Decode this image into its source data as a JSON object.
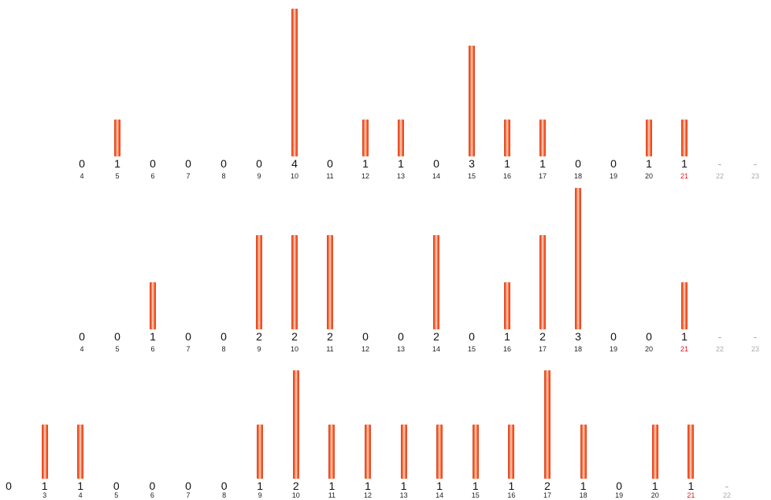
{
  "chart_data": [
    {
      "type": "bar",
      "categories": [
        "4",
        "5",
        "6",
        "7",
        "8",
        "9",
        "10",
        "11",
        "12",
        "13",
        "14",
        "15",
        "16",
        "17",
        "18",
        "19",
        "20",
        "21",
        "22",
        "23"
      ],
      "values": [
        0,
        1,
        0,
        0,
        0,
        0,
        4,
        0,
        1,
        1,
        0,
        3,
        1,
        1,
        0,
        0,
        1,
        1,
        null,
        null
      ],
      "value_labels": [
        "0",
        "1",
        "0",
        "0",
        "0",
        "0",
        "4",
        "0",
        "1",
        "1",
        "0",
        "3",
        "1",
        "1",
        "0",
        "0",
        "1",
        "1",
        "-",
        "-"
      ],
      "highlight_category": "21",
      "future_categories": [
        "22",
        "23"
      ]
    },
    {
      "type": "bar",
      "categories": [
        "4",
        "5",
        "6",
        "7",
        "8",
        "9",
        "10",
        "11",
        "12",
        "13",
        "14",
        "15",
        "16",
        "17",
        "18",
        "19",
        "20",
        "21",
        "22",
        "23"
      ],
      "values": [
        0,
        0,
        1,
        0,
        0,
        2,
        2,
        2,
        0,
        0,
        2,
        0,
        1,
        2,
        3,
        0,
        0,
        1,
        null,
        null
      ],
      "value_labels": [
        "0",
        "0",
        "1",
        "0",
        "0",
        "2",
        "2",
        "2",
        "0",
        "0",
        "2",
        "0",
        "1",
        "2",
        "3",
        "0",
        "0",
        "1",
        "-",
        "-"
      ],
      "highlight_category": "21",
      "future_categories": [
        "22",
        "23"
      ]
    },
    {
      "type": "bar",
      "categories": [
        "",
        "3",
        "4",
        "5",
        "6",
        "7",
        "8",
        "9",
        "10",
        "11",
        "12",
        "13",
        "14",
        "15",
        "16",
        "17",
        "18",
        "19",
        "20",
        "21",
        "22"
      ],
      "values": [
        0,
        1,
        1,
        0,
        0,
        0,
        0,
        1,
        2,
        1,
        1,
        1,
        1,
        1,
        1,
        2,
        1,
        0,
        1,
        1,
        null
      ],
      "value_labels": [
        "0",
        "1",
        "1",
        "0",
        "0",
        "0",
        "0",
        "1",
        "2",
        "1",
        "1",
        "1",
        "1",
        "1",
        "1",
        "2",
        "1",
        "0",
        "1",
        "1",
        "-"
      ],
      "highlight_category": "21",
      "future_categories": [
        "22"
      ]
    }
  ],
  "colors": {
    "bar": "#f04a20",
    "today_label": "#e8141e",
    "future_label": "#aaaaaa",
    "text": "#111111"
  }
}
